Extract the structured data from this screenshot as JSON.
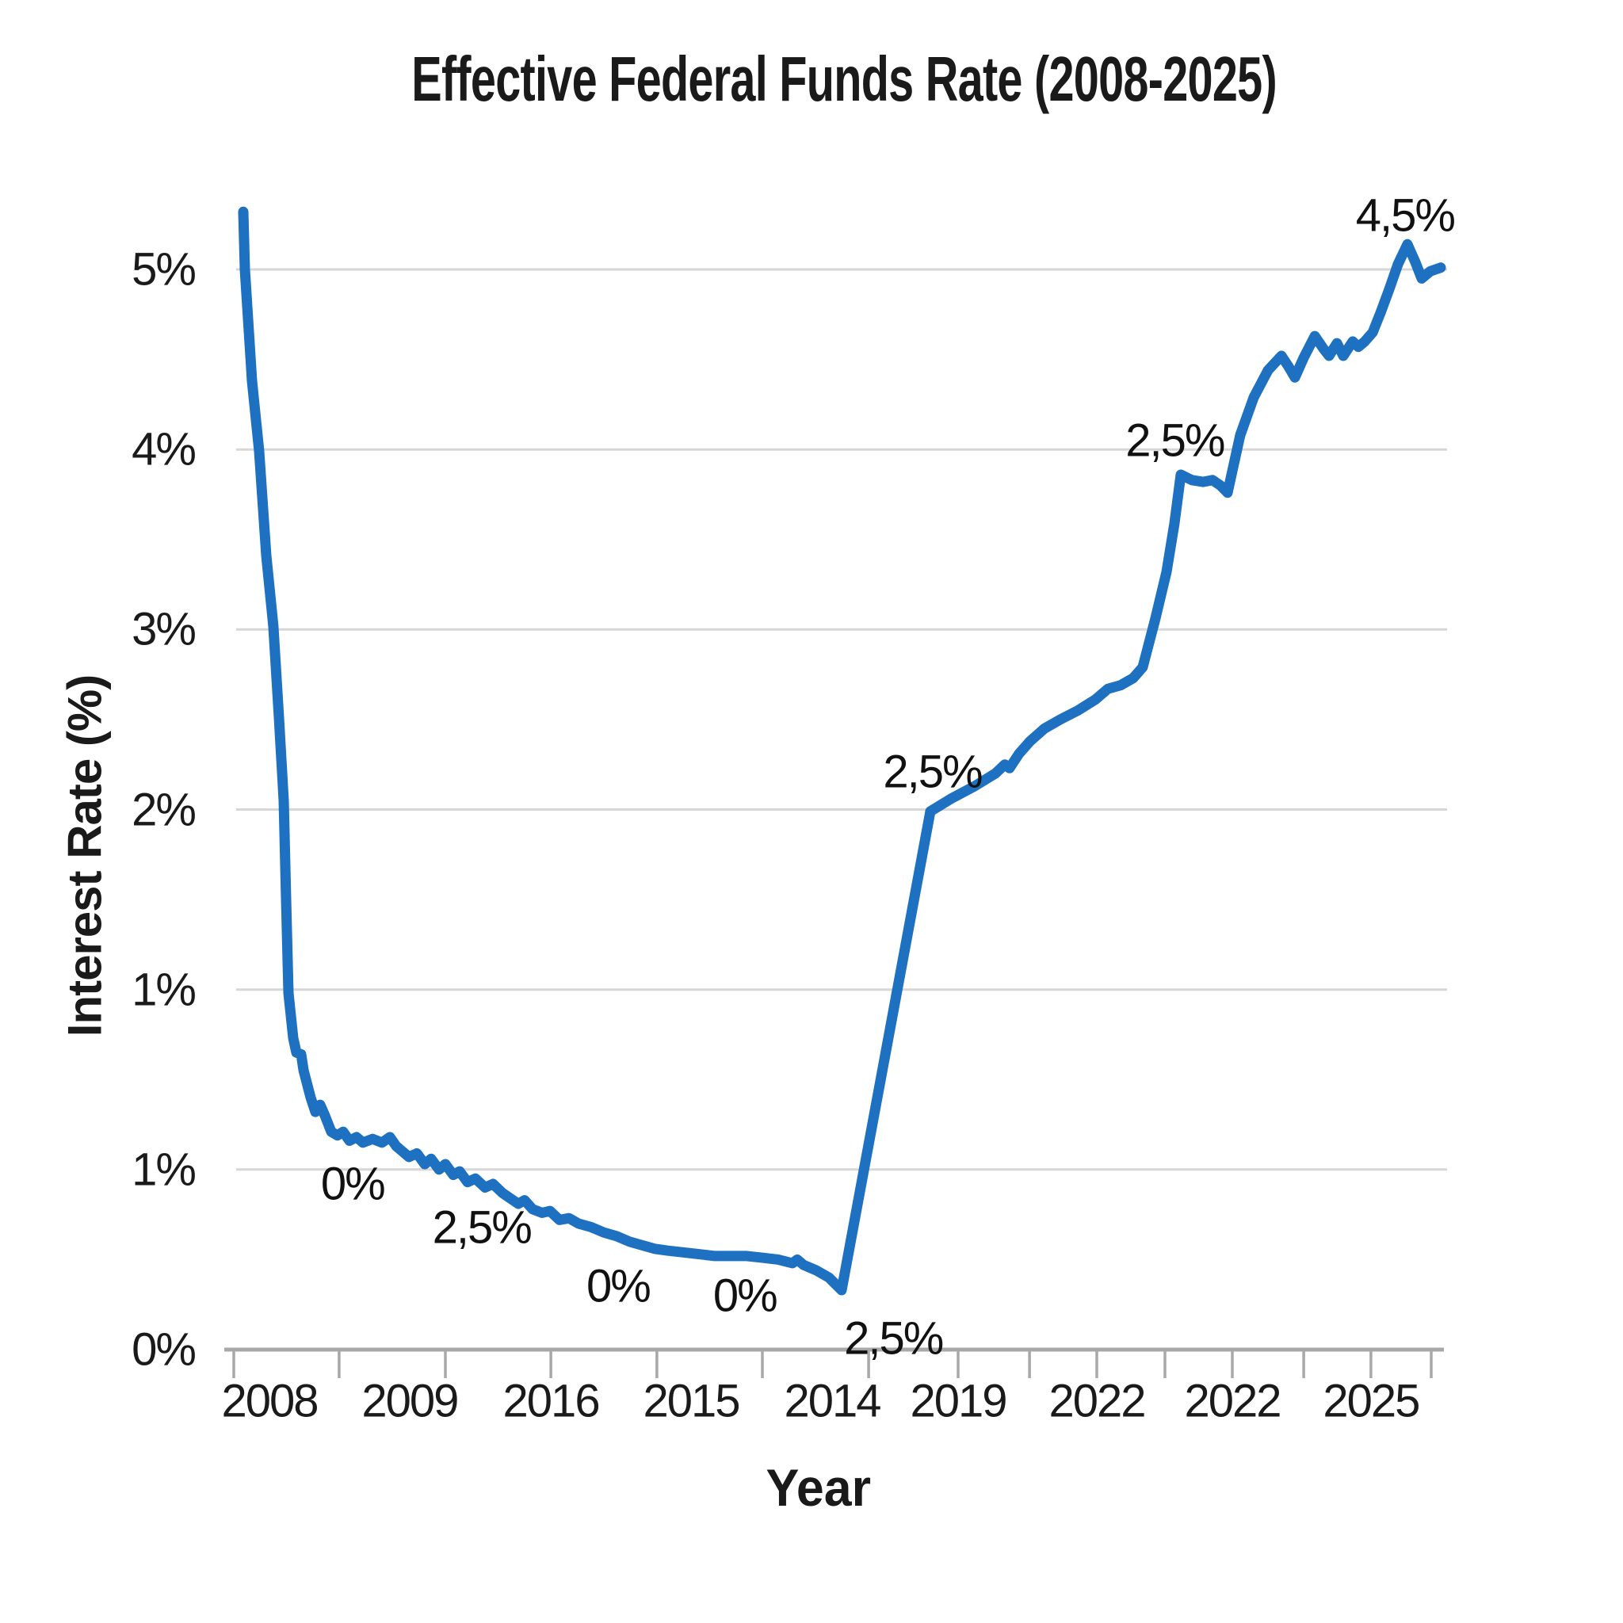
{
  "title": "Effective Federal Funds Rate (2008-2025)",
  "x_axis": {
    "label": "Year",
    "tick_labels": [
      [
        "2008",
        0.0358
      ],
      [
        "2009",
        0.1509
      ],
      [
        "2016",
        0.2668
      ],
      [
        "2015",
        0.3819
      ],
      [
        "2014",
        0.4977
      ],
      [
        "2019",
        0.6012
      ],
      [
        "2022",
        0.715
      ],
      [
        "2022",
        0.8263
      ],
      [
        "2025",
        0.9401
      ]
    ],
    "minor_ticks": [
      0.0065,
      0.093,
      0.1802,
      0.2668,
      0.3539,
      0.4405,
      0.5277,
      0.6012,
      0.6598,
      0.715,
      0.771,
      0.8263,
      0.8849,
      0.9401,
      0.9896
    ]
  },
  "y_axis": {
    "label": "Interest Rate (%)",
    "tick_labels": [
      [
        "0%",
        0
      ],
      [
        "1%",
        1
      ],
      [
        "1%",
        2
      ],
      [
        "2%",
        3
      ],
      [
        "3%",
        4
      ],
      [
        "4%",
        5
      ],
      [
        "5%",
        6
      ]
    ]
  },
  "annotations": [
    [
      "0%",
      0.104,
      0.92
    ],
    [
      "2,5%",
      0.21,
      0.68
    ],
    [
      "0%",
      0.322,
      0.35
    ],
    [
      "0%",
      0.426,
      0.3
    ],
    [
      "2,5%",
      0.548,
      0.06
    ],
    [
      "2,5%",
      0.58,
      3.21
    ],
    [
      "2,5%",
      0.779,
      5.05
    ],
    [
      "4,5%",
      0.968,
      6.3
    ]
  ],
  "colors": {
    "line": "#1e70c1",
    "grid": "#d7d7d7",
    "axis": "#a8a8a8",
    "text": "#1a1a1a"
  },
  "chart_data": {
    "type": "line",
    "title": "Effective Federal Funds Rate (2008-2025)",
    "xlabel": "Year",
    "ylabel": "Interest Rate (%)",
    "x_tick_labels": [
      "2008",
      "2009",
      "2016",
      "2015",
      "2014",
      "2019",
      "2022",
      "2022",
      "2025"
    ],
    "y_tick_labels": [
      "0%",
      "1%",
      "1%",
      "2%",
      "3%",
      "4%",
      "5%"
    ],
    "legend": "none",
    "grid": "horizontal",
    "note": "x = fraction along the time axis (0=left,1=right); y = vertical axis units where each gridline step is one labeled tick (axis labels repeat 1% twice); line starts ~5.3, drops to ~0.3, jumps to ~3 units (2% gridline), plateaus ~4.8, peaks ~6.1 and ends ~6.0",
    "series": [
      {
        "name": "Effective Federal Funds Rate",
        "points": [
          [
            0.0143,
            6.32
          ],
          [
            0.0156,
            6.0
          ],
          [
            0.0215,
            5.38
          ],
          [
            0.0273,
            4.99
          ],
          [
            0.0332,
            4.41
          ],
          [
            0.039,
            4.02
          ],
          [
            0.0436,
            3.51
          ],
          [
            0.0475,
            3.05
          ],
          [
            0.0494,
            2.52
          ],
          [
            0.0514,
            1.98
          ],
          [
            0.0553,
            1.73
          ],
          [
            0.0579,
            1.65
          ],
          [
            0.0618,
            1.64
          ],
          [
            0.0638,
            1.55
          ],
          [
            0.0696,
            1.4
          ],
          [
            0.0735,
            1.32
          ],
          [
            0.0774,
            1.36
          ],
          [
            0.0813,
            1.3
          ],
          [
            0.0865,
            1.21
          ],
          [
            0.0917,
            1.19
          ],
          [
            0.0963,
            1.21
          ],
          [
            0.1015,
            1.16
          ],
          [
            0.1073,
            1.18
          ],
          [
            0.1125,
            1.15
          ],
          [
            0.1204,
            1.17
          ],
          [
            0.1282,
            1.15
          ],
          [
            0.1347,
            1.18
          ],
          [
            0.1399,
            1.13
          ],
          [
            0.1451,
            1.1
          ],
          [
            0.1503,
            1.07
          ],
          [
            0.1568,
            1.09
          ],
          [
            0.1633,
            1.03
          ],
          [
            0.1685,
            1.06
          ],
          [
            0.175,
            1.0
          ],
          [
            0.1802,
            1.03
          ],
          [
            0.1867,
            0.97
          ],
          [
            0.1919,
            0.99
          ],
          [
            0.1984,
            0.93
          ],
          [
            0.2049,
            0.95
          ],
          [
            0.2128,
            0.9
          ],
          [
            0.2193,
            0.92
          ],
          [
            0.2271,
            0.87
          ],
          [
            0.2336,
            0.84
          ],
          [
            0.2401,
            0.81
          ],
          [
            0.2453,
            0.83
          ],
          [
            0.2518,
            0.78
          ],
          [
            0.2596,
            0.76
          ],
          [
            0.2661,
            0.77
          ],
          [
            0.2739,
            0.72
          ],
          [
            0.2817,
            0.73
          ],
          [
            0.2896,
            0.7
          ],
          [
            0.3,
            0.68
          ],
          [
            0.3104,
            0.65
          ],
          [
            0.3208,
            0.63
          ],
          [
            0.3312,
            0.6
          ],
          [
            0.3416,
            0.58
          ],
          [
            0.352,
            0.56
          ],
          [
            0.3624,
            0.55
          ],
          [
            0.3754,
            0.54
          ],
          [
            0.3884,
            0.53
          ],
          [
            0.4015,
            0.52
          ],
          [
            0.4145,
            0.52
          ],
          [
            0.4275,
            0.52
          ],
          [
            0.4405,
            0.51
          ],
          [
            0.4535,
            0.5
          ],
          [
            0.4652,
            0.48
          ],
          [
            0.4691,
            0.5
          ],
          [
            0.4743,
            0.47
          ],
          [
            0.4847,
            0.44
          ],
          [
            0.4951,
            0.4
          ],
          [
            0.5055,
            0.33
          ],
          [
            0.5784,
            2.99
          ],
          [
            0.5953,
            3.06
          ],
          [
            0.6148,
            3.13
          ],
          [
            0.6317,
            3.2
          ],
          [
            0.6395,
            3.25
          ],
          [
            0.6434,
            3.23
          ],
          [
            0.6512,
            3.31
          ],
          [
            0.6603,
            3.38
          ],
          [
            0.6721,
            3.45
          ],
          [
            0.6851,
            3.5
          ],
          [
            0.6994,
            3.55
          ],
          [
            0.7137,
            3.61
          ],
          [
            0.7241,
            3.67
          ],
          [
            0.7345,
            3.69
          ],
          [
            0.7449,
            3.73
          ],
          [
            0.7527,
            3.79
          ],
          [
            0.7631,
            4.06
          ],
          [
            0.7723,
            4.32
          ],
          [
            0.7788,
            4.59
          ],
          [
            0.784,
            4.86
          ],
          [
            0.7931,
            4.83
          ],
          [
            0.8022,
            4.82
          ],
          [
            0.81,
            4.83
          ],
          [
            0.8165,
            4.8
          ],
          [
            0.8224,
            4.76
          ],
          [
            0.8328,
            5.08
          ],
          [
            0.8439,
            5.29
          ],
          [
            0.8556,
            5.44
          ],
          [
            0.8666,
            5.52
          ],
          [
            0.8725,
            5.46
          ],
          [
            0.8777,
            5.4
          ],
          [
            0.8849,
            5.51
          ],
          [
            0.894,
            5.63
          ],
          [
            0.9011,
            5.56
          ],
          [
            0.9057,
            5.52
          ],
          [
            0.9122,
            5.59
          ],
          [
            0.9174,
            5.52
          ],
          [
            0.9252,
            5.6
          ],
          [
            0.9298,
            5.57
          ],
          [
            0.935,
            5.6
          ],
          [
            0.9415,
            5.65
          ],
          [
            0.948,
            5.76
          ],
          [
            0.9551,
            5.89
          ],
          [
            0.9623,
            6.03
          ],
          [
            0.9701,
            6.14
          ],
          [
            0.9766,
            6.04
          ],
          [
            0.9818,
            5.95
          ],
          [
            0.9889,
            5.99
          ],
          [
            0.9974,
            6.01
          ]
        ]
      }
    ]
  }
}
